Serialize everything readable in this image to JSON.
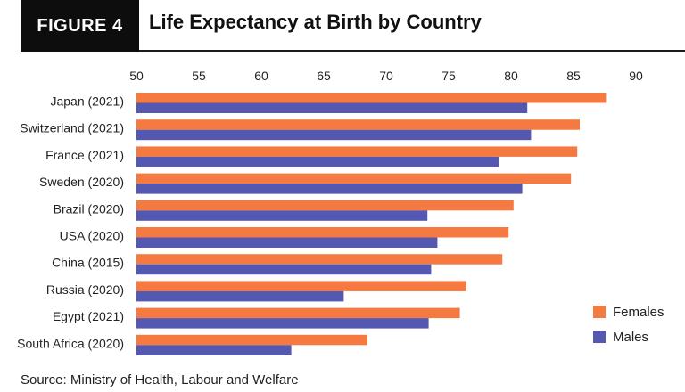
{
  "figure_label": "FIGURE 4",
  "source": "Source: Ministry of Health, Labour and Welfare",
  "colors": {
    "females": "#f47a42",
    "males": "#5458b0"
  },
  "chart_data": {
    "type": "bar",
    "orientation": "horizontal",
    "title": "Life Expectancy at Birth by Country",
    "xlabel": "",
    "ylabel": "",
    "xlim": [
      50,
      90
    ],
    "xticks": [
      50,
      55,
      60,
      65,
      70,
      75,
      80,
      85,
      90
    ],
    "legend_position": "bottom-right",
    "categories": [
      "Japan (2021)",
      "Switzerland (2021)",
      "France (2021)",
      "Sweden (2020)",
      "Brazil (2020)",
      "USA (2020)",
      "China (2015)",
      "Russia (2020)",
      "Egypt (2021)",
      "South Africa (2020)"
    ],
    "series": [
      {
        "name": "Females",
        "values": [
          87.6,
          85.5,
          85.3,
          84.8,
          80.2,
          79.8,
          79.3,
          76.4,
          75.9,
          68.5
        ]
      },
      {
        "name": "Males",
        "values": [
          81.3,
          81.6,
          79.0,
          80.9,
          73.3,
          74.1,
          73.6,
          66.6,
          73.4,
          62.4
        ]
      }
    ]
  }
}
